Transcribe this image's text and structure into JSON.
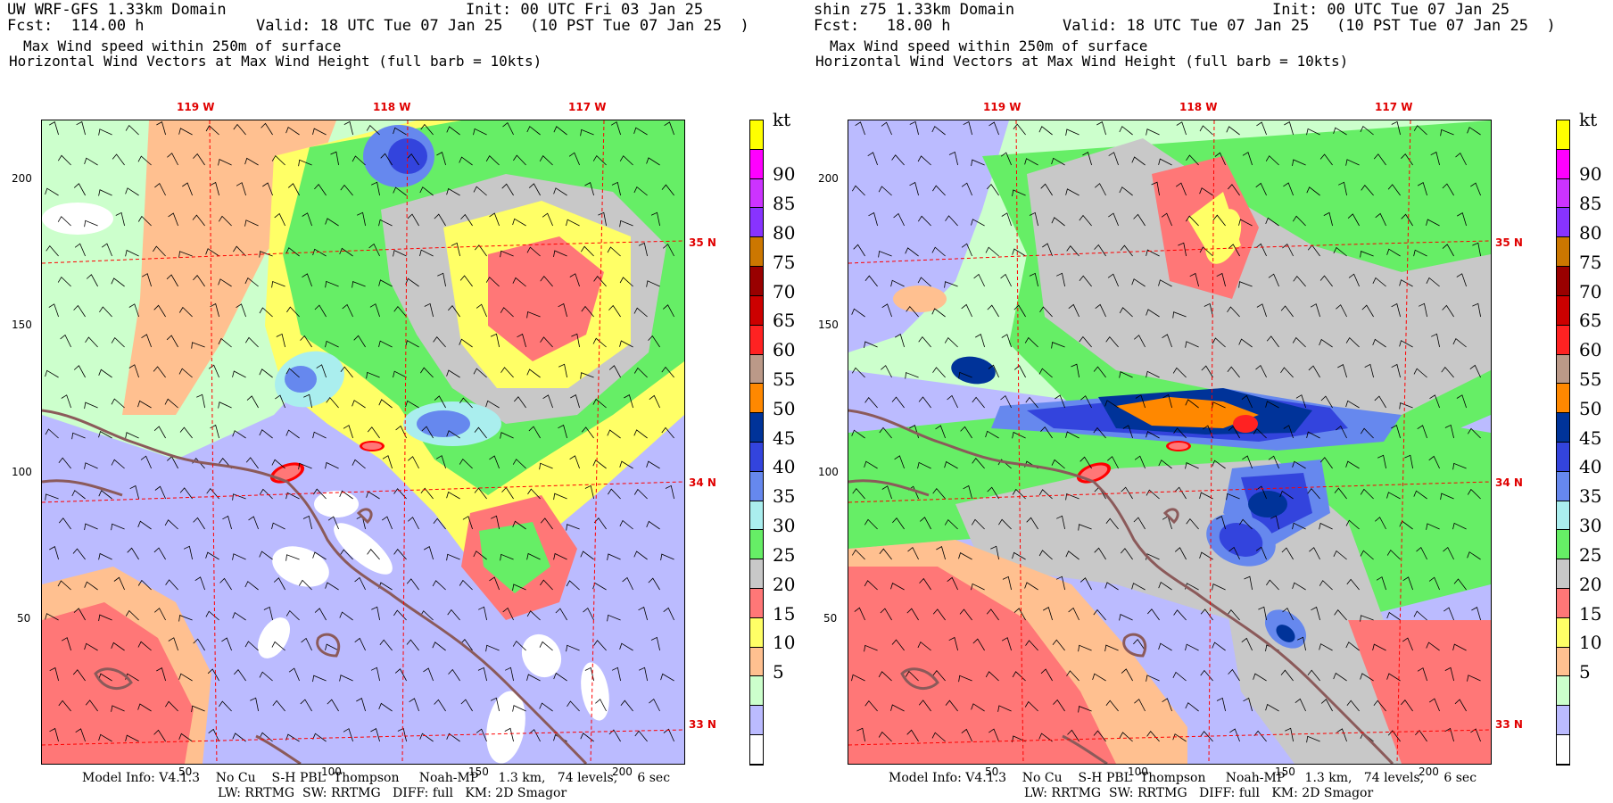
{
  "panels": [
    {
      "title_left": "UW WRF-GFS 1.33km Domain",
      "init": "Init: 00 UTC Fri 03 Jan 25",
      "fcst": "Fcst:  114.00 h",
      "valid": "Valid: 18 UTC Tue 07 Jan 25   (10 PST Tue 07 Jan 25  )",
      "desc1": "Max Wind speed within 250m of surface",
      "desc2": "Horizontal Wind Vectors at Max Wind Height (full barb = 10kts)",
      "footer1": "Model Info: V4.1.3    No Cu    S-H PBL  Thompson     Noah-MP     1.3 km,   74 levels,     6 sec",
      "footer2": "LW: RRTMG  SW: RRTMG   DIFF: full   KM: 2D Smagor"
    },
    {
      "title_left": "shin z75 1.33km Domain",
      "init": "Init: 00 UTC Tue 07 Jan 25",
      "fcst": "Fcst:   18.00 h",
      "valid": "Valid: 18 UTC Tue 07 Jan 25   (10 PST Tue 07 Jan 25  )",
      "desc1": "Max Wind speed within 250m of surface",
      "desc2": "Horizontal Wind Vectors at Max Wind Height (full barb = 10kts)",
      "footer1": "Model Info: V4.1.3    No Cu    S-H PBL  Thompson     Noah-MP     1.3 km,   74 levels,     6 sec",
      "footer2": "LW: RRTMG  SW: RRTMG   DIFF: full   KM: 2D Smagor"
    }
  ],
  "lon_labels": [
    "119 W",
    "118 W",
    "117 W"
  ],
  "lat_labels": [
    "35 N",
    "34 N",
    "33 N"
  ],
  "y_ticks": [
    "200",
    "150",
    "100",
    "50"
  ],
  "x_ticks": [
    "50",
    "100",
    "150",
    "200"
  ],
  "colorbar": {
    "unit": "kt",
    "labels": [
      "90",
      "85",
      "80",
      "75",
      "70",
      "65",
      "60",
      "55",
      "50",
      "45",
      "40",
      "35",
      "30",
      "25",
      "20",
      "15",
      "10",
      "5"
    ],
    "colors": [
      "#ffff00",
      "#ff00ff",
      "#cc33ff",
      "#8833ff",
      "#cc7700",
      "#990000",
      "#cc0000",
      "#ff2222",
      "#bb9988",
      "#ff8800",
      "#003399",
      "#3344dd",
      "#6688ee",
      "#aaeeee",
      "#66ee66",
      "#c8c8c8",
      "#ff7777",
      "#ffff66",
      "#ffc090",
      "#ccffcc",
      "#bbbbff",
      "#ffffff"
    ]
  },
  "map_colors": {
    "c5": "#bbbbff",
    "c10": "#ccffcc",
    "c15": "#ffc090",
    "c20": "#ffff66",
    "c25": "#ff7777",
    "c30": "#c8c8c8",
    "c35": "#66ee66",
    "c40": "#aaeeee",
    "c45": "#6688ee",
    "c50": "#3344dd",
    "c55": "#003399",
    "c60": "#ff8800",
    "c70": "#ff2222",
    "coast": "#8b5a5a",
    "grid": "#ff0000"
  }
}
